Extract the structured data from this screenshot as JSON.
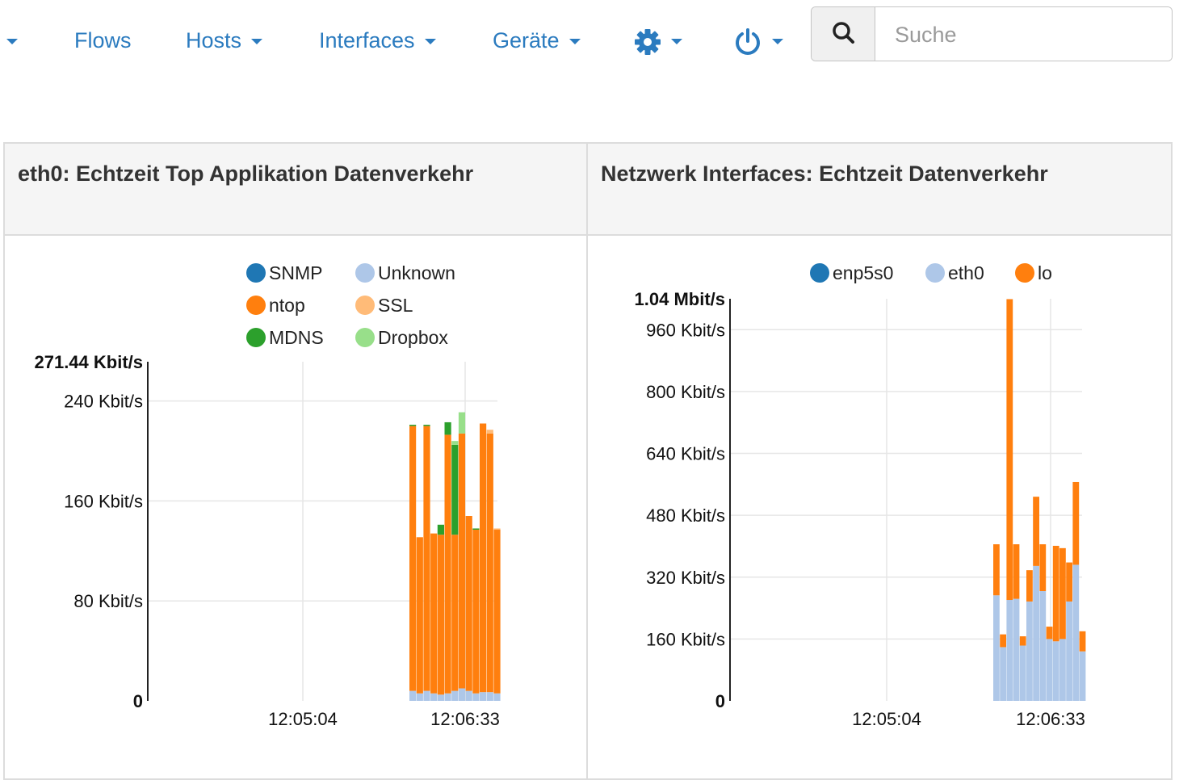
{
  "nav": {
    "flows": "Flows",
    "hosts": "Hosts",
    "interfaces": "Interfaces",
    "devices": "Geräte",
    "search_placeholder": "Suche"
  },
  "colors": {
    "link": "#2b7bbf",
    "enp5s0": "#1f77b4",
    "eth0": "#aec7e8",
    "lo": "#ff7f0e"
  },
  "icons": [
    "caret-down-icon",
    "search-icon",
    "gear-icon",
    "power-icon"
  ],
  "panels": [
    {
      "title": "eth0: Echtzeit Top Applikation Datenverkehr"
    },
    {
      "title": "Netzwerk Interfaces: Echtzeit Datenverkehr"
    }
  ],
  "chart_data": [
    {
      "type": "bar",
      "stacked": true,
      "title": "eth0: Echtzeit Top Applikation Datenverkehr",
      "y_max_label": "271.44 Kbit/s",
      "y_ticks": [
        "0",
        "80 Kbit/s",
        "160 Kbit/s",
        "240 Kbit/s"
      ],
      "y_tick_values": [
        0,
        80,
        160,
        240
      ],
      "ylim": [
        0,
        271.44
      ],
      "x_ticks": [
        "12:05:04",
        "12:06:33"
      ],
      "legend": [
        {
          "name": "SNMP",
          "color": "#1f77b4"
        },
        {
          "name": "Unknown",
          "color": "#aec7e8"
        },
        {
          "name": "ntop",
          "color": "#ff7f0e"
        },
        {
          "name": "SSL",
          "color": "#ffbb78"
        },
        {
          "name": "MDNS",
          "color": "#2ca02c"
        },
        {
          "name": "Dropbox",
          "color": "#98df8a"
        }
      ],
      "series": [
        {
          "name": "Unknown",
          "values": [
            8,
            6,
            8,
            6,
            5,
            6,
            8,
            10,
            8,
            6,
            7,
            7,
            6
          ]
        },
        {
          "name": "ntop",
          "values": [
            212,
            125,
            212,
            128,
            128,
            207,
            125,
            204,
            140,
            131,
            215,
            207,
            131
          ]
        },
        {
          "name": "MDNS",
          "values": [
            1,
            0,
            1,
            0,
            8,
            10,
            72,
            0,
            0,
            1,
            0,
            0,
            0
          ]
        },
        {
          "name": "SSL",
          "values": [
            0,
            0,
            0,
            0,
            0,
            0,
            0,
            0,
            0,
            0,
            0,
            3,
            1
          ]
        },
        {
          "name": "Dropbox",
          "values": [
            0,
            0,
            0,
            0,
            0,
            0,
            3,
            17,
            0,
            0,
            0,
            0,
            0
          ]
        }
      ]
    },
    {
      "type": "bar",
      "stacked": true,
      "title": "Netzwerk Interfaces: Echtzeit Datenverkehr",
      "y_max_label": "1.04 Mbit/s",
      "y_ticks": [
        "0",
        "160 Kbit/s",
        "320 Kbit/s",
        "480 Kbit/s",
        "640 Kbit/s",
        "800 Kbit/s",
        "960 Kbit/s"
      ],
      "y_tick_values": [
        0,
        160,
        320,
        480,
        640,
        800,
        960
      ],
      "ylim": [
        0,
        1040
      ],
      "x_ticks": [
        "12:05:04",
        "12:06:33"
      ],
      "legend": [
        {
          "name": "enp5s0",
          "color": "#1f77b4"
        },
        {
          "name": "eth0",
          "color": "#aec7e8"
        },
        {
          "name": "lo",
          "color": "#ff7f0e"
        }
      ],
      "series": [
        {
          "name": "eth0",
          "values": [
            273,
            139,
            261,
            264,
            143,
            257,
            349,
            284,
            160,
            154,
            160,
            257,
            352,
            128
          ]
        },
        {
          "name": "lo",
          "values": [
            132,
            33,
            778,
            141,
            24,
            81,
            179,
            121,
            32,
            247,
            235,
            101,
            214,
            52
          ]
        }
      ]
    }
  ]
}
